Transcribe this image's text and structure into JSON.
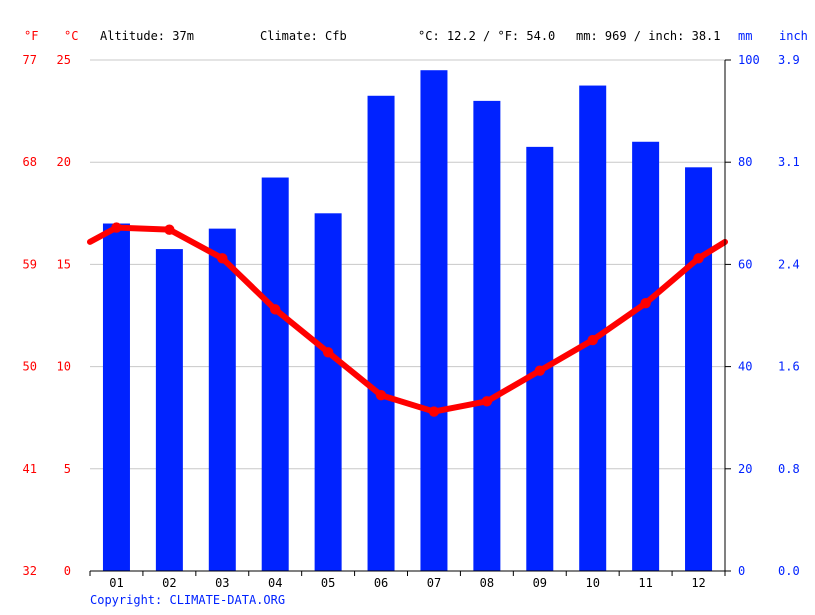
{
  "chart_data": {
    "type": "bar+line",
    "header": {
      "altitude": "Altitude: 37m",
      "climate": "Climate: Cfb",
      "temp_summary": "°C: 12.2 / °F: 54.0",
      "precip_summary": "mm: 969 / inch: 38.1"
    },
    "axis_units": {
      "left_fahrenheit": "°F",
      "left_celsius": "°C",
      "right_mm": "mm",
      "right_inch": "inch"
    },
    "categories": [
      "01",
      "02",
      "03",
      "04",
      "05",
      "06",
      "07",
      "08",
      "09",
      "10",
      "11",
      "12"
    ],
    "series": [
      {
        "type": "bar",
        "axis": "precipitation_mm",
        "values": [
          68,
          63,
          67,
          77,
          70,
          93,
          98,
          92,
          83,
          95,
          84,
          79
        ]
      },
      {
        "type": "line",
        "axis": "temperature_c",
        "values": [
          16.8,
          16.7,
          15.3,
          12.8,
          10.7,
          8.6,
          7.8,
          8.3,
          9.8,
          11.3,
          13.1,
          15.3
        ],
        "edge_values": [
          16.1,
          16.1
        ]
      }
    ],
    "y_left_celsius": {
      "ylim": [
        0,
        25
      ],
      "ticks": [
        "0",
        "5",
        "10",
        "15",
        "20",
        "25"
      ]
    },
    "y_left_fahrenheit": {
      "ticks": [
        "32",
        "41",
        "50",
        "59",
        "68",
        "77"
      ]
    },
    "y_right_mm": {
      "ylim": [
        0,
        100
      ],
      "ticks": [
        "0",
        "20",
        "40",
        "60",
        "80",
        "100"
      ]
    },
    "y_right_inch": {
      "ticks": [
        "0.0",
        "0.8",
        "1.6",
        "2.4",
        "3.1",
        "3.9"
      ]
    },
    "grid": true,
    "colors": {
      "temperature": "#ff0000",
      "precipitation": "#0022ff",
      "grid": "#c8c8c8",
      "axis": "#000000",
      "text": "#000000",
      "copyright": "#0022ff"
    }
  },
  "footer": {
    "copyright": "Copyright: CLIMATE-DATA.ORG"
  }
}
